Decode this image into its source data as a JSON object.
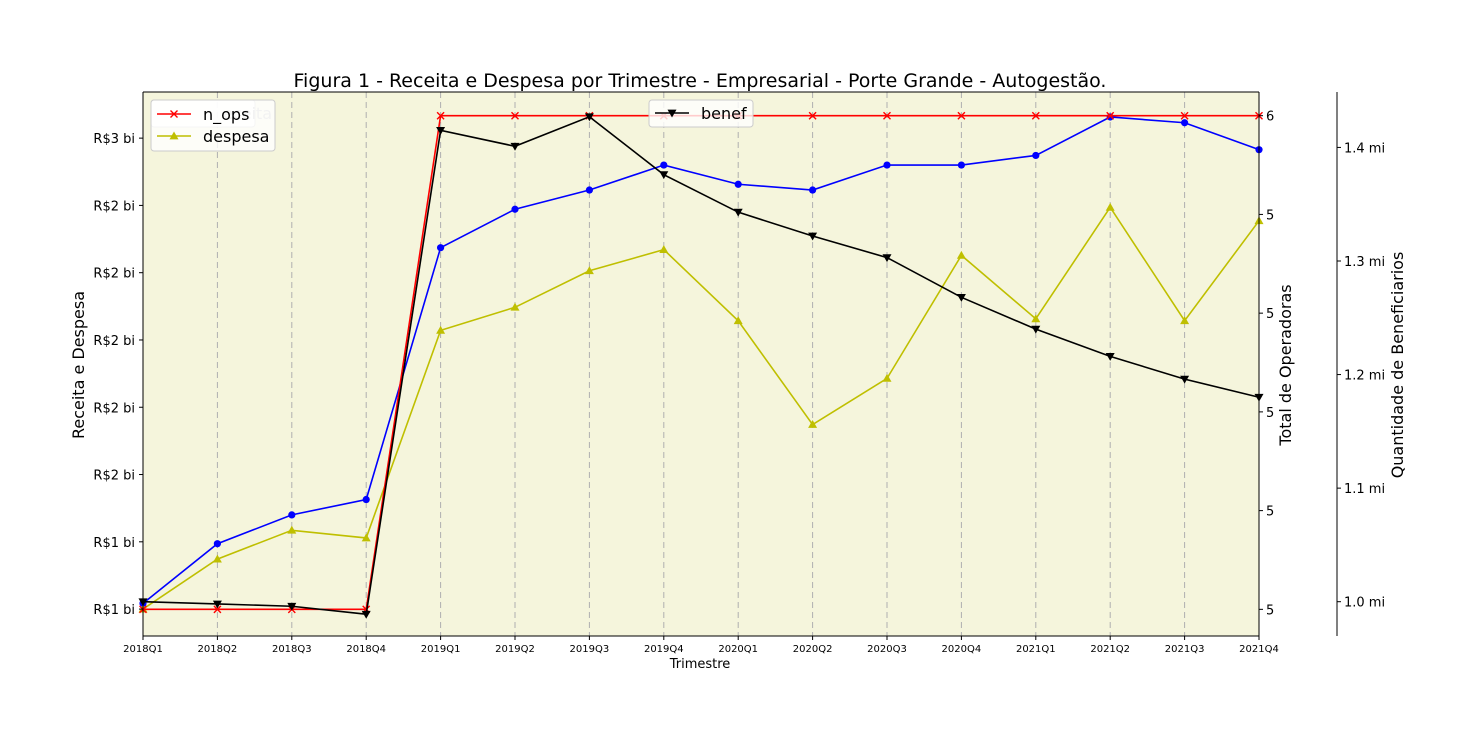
{
  "chart_data": {
    "type": "line",
    "title": "Figura 1 - Receita e Despesa por Trimestre - Empresarial - Porte Grande - Autogestão.",
    "xlabel": "Trimestre",
    "ylabel_left": "Receita e Despesa",
    "ylabel_right1": "Total de Operadoras",
    "ylabel_right2": "Quantidade de Beneficiarios",
    "background_color": "#f5f5dc",
    "grid": "vertical dashed",
    "categories": [
      "2018Q1",
      "2018Q2",
      "2018Q3",
      "2018Q4",
      "2019Q1",
      "2019Q2",
      "2019Q3",
      "2019Q4",
      "2020Q1",
      "2020Q2",
      "2020Q3",
      "2020Q4",
      "2021Q1",
      "2021Q2",
      "2021Q3",
      "2021Q4"
    ],
    "left_axis": {
      "ticks": [
        1.0,
        1.35,
        1.7,
        2.05,
        2.4,
        2.75,
        3.1,
        3.45
      ],
      "tick_labels": [
        "R$1 bi",
        "R$1 bi",
        "R$2 bi",
        "R$2 bi",
        "R$2 bi",
        "R$2 bi",
        "R$2 bi",
        "R$3 bi"
      ],
      "ylim": [
        0.86,
        3.69
      ]
    },
    "right_axis_ops": {
      "ticks": [
        5.0,
        5.2,
        5.4,
        5.6,
        5.8,
        6.0
      ],
      "tick_labels": [
        "5",
        "5",
        "5",
        "5",
        "5",
        "6"
      ],
      "ylim": [
        4.946,
        6.048
      ]
    },
    "right_axis_benef": {
      "ticks": [
        1.0,
        1.1,
        1.2,
        1.3,
        1.4
      ],
      "tick_labels": [
        "1.0 mi",
        "1.1 mi",
        "1.2 mi",
        "1.3 mi",
        "1.4 mi"
      ],
      "ylim": [
        0.9698,
        1.4488
      ]
    },
    "legend_left": {
      "position": "top-left",
      "entries": [
        "n_ops",
        "despesa"
      ],
      "partially_hidden_label": "eceita"
    },
    "legend_right": {
      "position": "top-center",
      "entries": [
        "benef"
      ]
    },
    "series": [
      {
        "name": "receita",
        "axis": "left",
        "color": "#0000ff",
        "marker": "circle",
        "values": [
          1.03,
          1.34,
          1.49,
          1.57,
          2.88,
          3.08,
          3.18,
          3.31,
          3.21,
          3.18,
          3.31,
          3.31,
          3.36,
          3.56,
          3.53,
          3.39
        ]
      },
      {
        "name": "despesa",
        "axis": "left",
        "color": "#bfbf00",
        "marker": "triangle-up",
        "values": [
          1.0,
          1.26,
          1.41,
          1.37,
          2.45,
          2.57,
          2.76,
          2.87,
          2.5,
          1.96,
          2.2,
          2.84,
          2.51,
          3.09,
          2.5,
          3.02
        ]
      },
      {
        "name": "n_ops",
        "axis": "right_ops",
        "color": "#ff0000",
        "marker": "x",
        "values": [
          5.0,
          5.0,
          5.0,
          5.0,
          6.0,
          6.0,
          6.0,
          6.0,
          6.0,
          6.0,
          6.0,
          6.0,
          6.0,
          6.0,
          6.0,
          6.0
        ]
      },
      {
        "name": "benef",
        "axis": "right_benef",
        "color": "#000000",
        "marker": "triangle-down",
        "values": [
          1.0,
          0.998,
          0.996,
          0.989,
          1.415,
          1.401,
          1.427,
          1.376,
          1.343,
          1.322,
          1.303,
          1.268,
          1.24,
          1.216,
          1.196,
          1.18
        ]
      }
    ]
  }
}
